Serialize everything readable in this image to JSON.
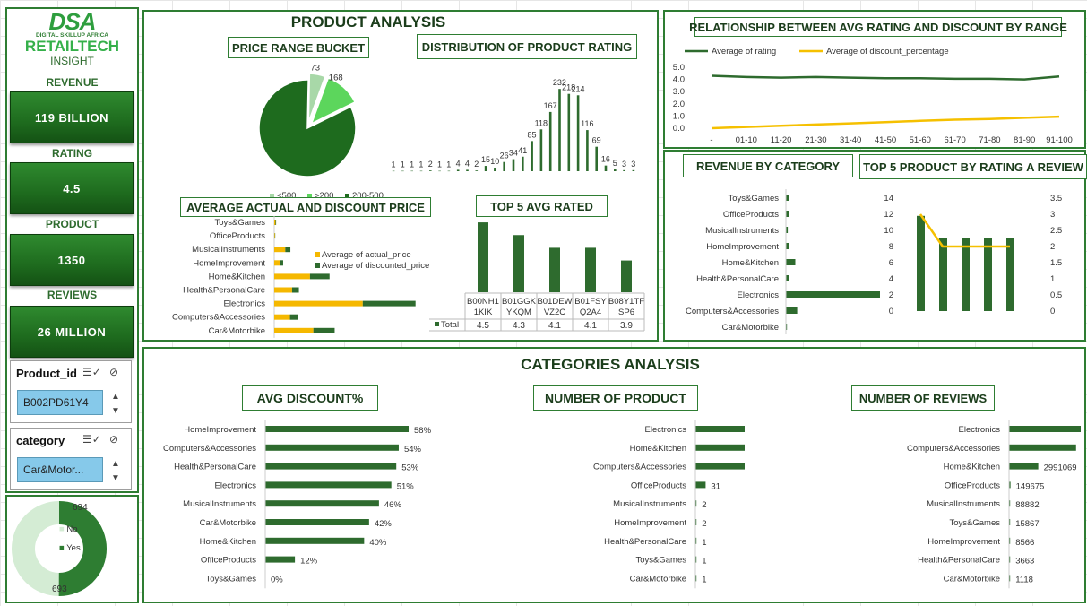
{
  "brand": {
    "logo_text": "DSA",
    "logo_sub": "DIGITAL SKILLUP AFRICA",
    "title": "RETAILTECH",
    "subtitle": "INSIGHT"
  },
  "kpis": [
    {
      "label": "REVENUE",
      "value": "119 BILLION"
    },
    {
      "label": "RATING",
      "value": "4.5"
    },
    {
      "label": "PRODUCT",
      "value": "1350"
    },
    {
      "label": "REVIEWS",
      "value": "26 MILLION"
    }
  ],
  "slicers": [
    {
      "title": "Product_id",
      "selected": "B002PD61Y4"
    },
    {
      "title": "category",
      "selected": "Car&Motor..."
    }
  ],
  "donut": {
    "no_label": "No",
    "yes_label": "Yes",
    "no_value": "694",
    "yes_value": "693",
    "no_count": 694,
    "yes_count": 693
  },
  "sections": {
    "product_analysis": "PRODUCT ANALYSIS",
    "categories_analysis": "CATEGORIES ANALYSIS",
    "price_range": "PRICE RANGE BUCKET",
    "rating_dist": "DISTRIBUTION OF PRODUCT RATING",
    "avg_price": "AVERAGE ACTUAL AND DISCOUNT PRICE",
    "top5_avg": "TOP 5 AVG RATED",
    "relationship": "RELATIONSHIP BETWEEN AVG RATING AND DISCOUNT BY RANGE",
    "rev_by_cat": "REVENUE BY CATEGORY",
    "top5_rating": "TOP 5 PRODUCT BY RATING A REVIEW",
    "avg_discount": "AVG DISCOUNT%",
    "num_product": "NUMBER OF PRODUCT",
    "num_reviews": "NUMBER OF REVIEWS"
  },
  "chart_data": [
    {
      "id": "price_range_pie",
      "type": "pie",
      "categories": [
        "<500",
        ">200",
        "200-500"
      ],
      "values": [
        73,
        168,
        1146
      ],
      "legend": [
        "<500",
        ">200",
        "200-500"
      ],
      "colors": [
        "#a8d8a8",
        "#5cd65c",
        "#1e6b1e"
      ]
    },
    {
      "id": "rating_distribution",
      "type": "bar",
      "values": [
        1,
        1,
        1,
        1,
        2,
        1,
        1,
        4,
        4,
        2,
        15,
        10,
        26,
        34,
        41,
        85,
        118,
        167,
        232,
        218,
        214,
        116,
        69,
        16,
        5,
        3,
        3
      ],
      "ylim": [
        0,
        240
      ]
    },
    {
      "id": "avg_actual_discount_price",
      "type": "bar",
      "categories": [
        "Toys&Games",
        "OfficeProducts",
        "MusicalInstruments",
        "HomeImprovement",
        "Home&Kitchen",
        "Health&PersonalCare",
        "Electronics",
        "Computers&Accessories",
        "Car&Motorbike"
      ],
      "series": [
        {
          "name": "Average of actual_price",
          "values": [
            150,
            80,
            1300,
            700,
            4200,
            2100,
            10400,
            1850,
            4600
          ],
          "color": "#f5b800"
        },
        {
          "name": "Average of discounted_price",
          "values": [
            70,
            40,
            600,
            350,
            2300,
            800,
            6200,
            900,
            2500
          ],
          "color": "#2e6b2e"
        }
      ],
      "xlim": [
        0,
        20000
      ]
    },
    {
      "id": "top5_avg_rated",
      "type": "bar",
      "categories": [
        "B00NH11KIK",
        "B01GGKYKQM",
        "B01DEWVZ2C",
        "B01FSYQ2A4",
        "B08Y1TFSP6"
      ],
      "cat_line1": [
        "B00NH1",
        "B01GGK",
        "B01DEW",
        "B01FSY",
        "B08Y1TF"
      ],
      "cat_line2": [
        "1KIK",
        "YKQM",
        "VZ2C",
        "Q2A4",
        "SP6"
      ],
      "series": [
        {
          "name": "Total",
          "values": [
            4.5,
            4.3,
            4.1,
            4.1,
            3.9
          ]
        }
      ],
      "value_labels": [
        "4.5",
        "4.3",
        "4.1",
        "4.1",
        "3.9"
      ],
      "ylim": [
        3.4,
        4.6
      ]
    },
    {
      "id": "rating_vs_discount",
      "type": "line",
      "categories": [
        "-",
        "01-10",
        "11-20",
        "21-30",
        "31-40",
        "41-50",
        "51-60",
        "61-70",
        "71-80",
        "81-90",
        "91-100"
      ],
      "series": [
        {
          "name": "Average of rating",
          "values": [
            4.3,
            4.2,
            4.15,
            4.2,
            4.15,
            4.1,
            4.1,
            4.05,
            4.05,
            4.0,
            4.25
          ],
          "color": "#2e6b2e"
        },
        {
          "name": "Average of discount_percentage",
          "values": [
            0.0,
            0.1,
            0.2,
            0.3,
            0.4,
            0.5,
            0.6,
            0.7,
            0.75,
            0.85,
            0.95
          ],
          "color": "#f5c000"
        }
      ],
      "yticks": [
        "5.0",
        "4.0",
        "3.0",
        "2.0",
        "1.0",
        "0.0"
      ],
      "ylim": [
        0,
        5
      ]
    },
    {
      "id": "revenue_by_category",
      "type": "bar",
      "categories": [
        "Toys&Games",
        "OfficeProducts",
        "MusicalInstruments",
        "HomeImprovement",
        "Home&Kitchen",
        "Health&PersonalCare",
        "Electronics",
        "Computers&Accessories",
        "Car&Motorbike"
      ],
      "values": [
        0.3,
        0.3,
        0.2,
        0.3,
        1.0,
        0.3,
        10.0,
        1.2,
        0.05
      ]
    },
    {
      "id": "top5_rating_review",
      "type": "bar",
      "series": [
        {
          "name": "bars",
          "values": [
            11.8,
            9,
            9,
            9,
            9
          ]
        },
        {
          "name": "line",
          "values": [
            3,
            2,
            2,
            2,
            2
          ]
        }
      ],
      "yticks_left": [
        "14",
        "12",
        "10",
        "8",
        "6",
        "4",
        "2",
        "0"
      ],
      "yticks_right": [
        "3.5",
        "3",
        "2.5",
        "2",
        "1.5",
        "1",
        "0.5",
        "0"
      ]
    },
    {
      "id": "avg_discount_pct",
      "type": "bar",
      "categories": [
        "HomeImprovement",
        "Computers&Accessories",
        "Health&PersonalCare",
        "Electronics",
        "MusicalInstruments",
        "Car&Motorbike",
        "Home&Kitchen",
        "OfficeProducts",
        "Toys&Games"
      ],
      "values": [
        58,
        54,
        53,
        51,
        46,
        42,
        40,
        12,
        0
      ],
      "value_labels": [
        "58%",
        "54%",
        "53%",
        "51%",
        "46%",
        "42%",
        "40%",
        "12%",
        "0%"
      ]
    },
    {
      "id": "number_of_product",
      "type": "bar",
      "categories": [
        "Electronics",
        "Home&Kitchen",
        "Computers&Accessories",
        "OfficeProducts",
        "MusicalInstruments",
        "HomeImprovement",
        "Health&PersonalCare",
        "Toys&Games",
        "Car&Motorbike"
      ],
      "values": [
        489,
        448,
        375,
        31,
        2,
        2,
        1,
        1,
        1
      ]
    },
    {
      "id": "number_of_reviews",
      "type": "bar",
      "categories": [
        "Electronics",
        "Computers&Accessories",
        "Home&Kitchen",
        "OfficeProducts",
        "MusicalInstruments",
        "Toys&Games",
        "HomeImprovement",
        "Health&PersonalCare",
        "Car&Motorbike"
      ],
      "values": [
        15590062,
        6857748,
        2991069,
        149675,
        88882,
        15867,
        8566,
        3663,
        1118
      ]
    }
  ]
}
